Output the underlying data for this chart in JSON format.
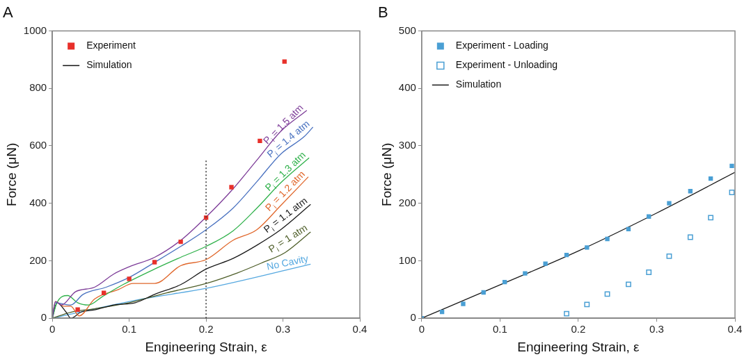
{
  "chart_data": [
    {
      "type": "line",
      "title": "A",
      "xlabel": "Engineering Strain, ε",
      "ylabel": "Force (μN)",
      "xlim": [
        0,
        0.4
      ],
      "xticks": [
        0,
        0.1,
        0.2,
        0.3,
        0.4
      ],
      "ylim": [
        0,
        1000
      ],
      "yticks": [
        0,
        200,
        400,
        600,
        800,
        1000
      ],
      "legend": "top left",
      "annotations": [
        "Simulation"
      ],
      "ref_lines": [
        {
          "axis": "x",
          "value": 0.2,
          "color": "#333333",
          "line_style": "dotted"
        }
      ],
      "series": [
        {
          "name": "Experiment",
          "type": "scatter",
          "marker": "square",
          "color": "#e8302a",
          "x": [
            0.033,
            0.067,
            0.1,
            0.133,
            0.167,
            0.2,
            0.233,
            0.27,
            0.302
          ],
          "values": [
            30,
            88,
            137,
            195,
            266,
            350,
            456,
            617,
            893
          ]
        },
        {
          "name": "P$_{i}$ = 1.5 atm",
          "color": "#7d3c98",
          "x": [
            0,
            0.004,
            0.012,
            0.03,
            0.055,
            0.08,
            0.1,
            0.133,
            0.167,
            0.2,
            0.235,
            0.266,
            0.297,
            0.331
          ],
          "values": [
            0,
            58,
            46,
            92,
            108,
            154,
            179,
            212,
            271,
            352,
            450,
            550,
            650,
            723
          ]
        },
        {
          "name": "P$_{i}$ = 1.4 atm",
          "color": "#4a72c0",
          "x": [
            0,
            0.004,
            0.024,
            0.04,
            0.07,
            0.1,
            0.134,
            0.167,
            0.2,
            0.235,
            0.266,
            0.297,
            0.328,
            0.339
          ],
          "values": [
            0,
            54,
            46,
            83,
            108,
            142,
            196,
            250,
            308,
            383,
            475,
            571,
            633,
            665
          ]
        },
        {
          "name": "P$_{i}$ = 1.3 atm",
          "color": "#2fb14a",
          "x": [
            0,
            0.006,
            0.02,
            0.033,
            0.047,
            0.065,
            0.092,
            0.133,
            0.167,
            0.2,
            0.235,
            0.266,
            0.297,
            0.334
          ],
          "values": [
            0,
            54,
            79,
            54,
            46,
            75,
            117,
            171,
            212,
            250,
            304,
            383,
            471,
            558
          ]
        },
        {
          "name": "P$_{i}$ = 1.2 atm",
          "color": "#e0662a",
          "x": [
            0,
            0.004,
            0.015,
            0.024,
            0.035,
            0.055,
            0.086,
            0.105,
            0.133,
            0.167,
            0.2,
            0.235,
            0.266,
            0.297,
            0.333
          ],
          "values": [
            0,
            58,
            42,
            42,
            8,
            67,
            100,
            121,
            121,
            183,
            204,
            271,
            308,
            392,
            492
          ]
        },
        {
          "name": "P$_{i}$ = 1.1 atm",
          "color": "#1a1a1a",
          "x": [
            0,
            0.006,
            0.018,
            0.024,
            0.037,
            0.055,
            0.08,
            0.108,
            0.133,
            0.167,
            0.2,
            0.235,
            0.266,
            0.297,
            0.336
          ],
          "values": [
            0,
            54,
            21,
            0,
            21,
            29,
            46,
            54,
            83,
            117,
            171,
            208,
            254,
            308,
            396
          ]
        },
        {
          "name": "P$_{i}$ = 1 atm",
          "color": "#4f5f2a",
          "x": [
            0,
            0.024,
            0.055,
            0.1,
            0.148,
            0.2,
            0.241,
            0.272,
            0.303,
            0.336
          ],
          "values": [
            0,
            21,
            33,
            54,
            88,
            121,
            158,
            192,
            229,
            300
          ]
        },
        {
          "name": "No Cavity",
          "color": "#55a8e0",
          "x": [
            0,
            0.117,
            0.2,
            0.336
          ],
          "values": [
            0,
            67,
            104,
            188
          ]
        }
      ]
    },
    {
      "type": "line",
      "title": "B",
      "xlabel": "Engineering Strain, ε",
      "ylabel": "Force (μN)",
      "xlim": [
        0,
        0.4
      ],
      "xticks": [
        0,
        0.1,
        0.2,
        0.3,
        0.4
      ],
      "ylim": [
        0,
        500
      ],
      "yticks": [
        0,
        100,
        200,
        300,
        400,
        500
      ],
      "legend": "top left",
      "series": [
        {
          "name": "Experiment - Loading",
          "type": "scatter",
          "marker": "square",
          "color": "#4a9fd4",
          "x": [
            0,
            0.026,
            0.053,
            0.079,
            0.106,
            0.132,
            0.158,
            0.185,
            0.211,
            0.237,
            0.264,
            0.29,
            0.316,
            0.343,
            0.369,
            0.396
          ],
          "values": [
            0,
            11,
            25,
            45,
            63,
            78,
            95,
            110,
            123,
            138,
            155,
            177,
            200,
            221,
            243,
            265
          ]
        },
        {
          "name": "Experiment - Unloading",
          "type": "scatter",
          "marker": "square-open",
          "color": "#4a9fd4",
          "x": [
            0.185,
            0.211,
            0.237,
            0.264,
            0.29,
            0.316,
            0.343,
            0.369,
            0.396
          ],
          "values": [
            8,
            24,
            42,
            59,
            80,
            108,
            141,
            175,
            219
          ]
        },
        {
          "name": "Simulation",
          "color": "#1a1a1a",
          "x": [
            0,
            0.1,
            0.2,
            0.3,
            0.4
          ],
          "values": [
            0,
            58,
            117,
            183,
            254
          ]
        }
      ]
    }
  ]
}
